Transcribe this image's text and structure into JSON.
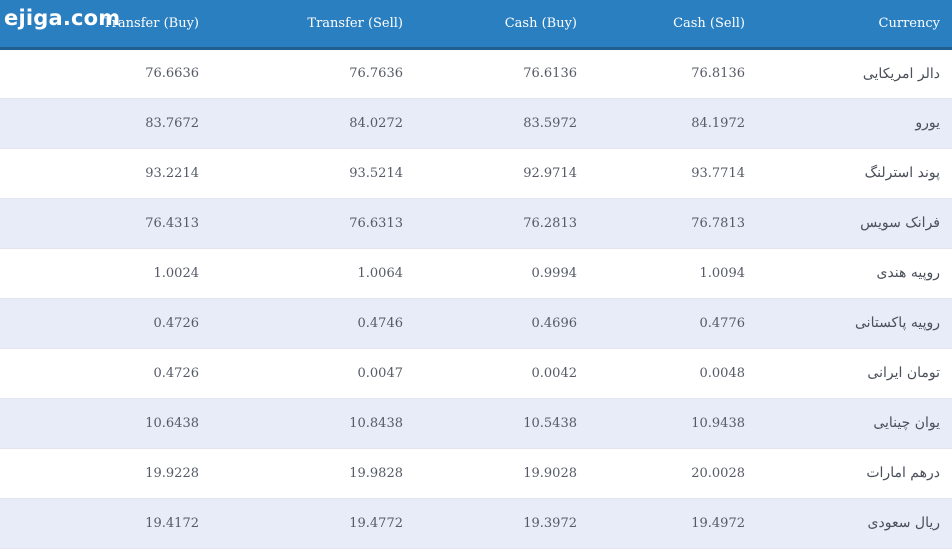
{
  "brand": {
    "logo_text": "ejiga.com"
  },
  "table": {
    "headers": [
      "Transfer (Buy)",
      "Transfer (Sell)",
      "Cash (Buy)",
      "Cash (Sell)",
      "Currency"
    ],
    "rows": [
      {
        "transfer_buy": "76.6636",
        "transfer_sell": "76.7636",
        "cash_buy": "76.6136",
        "cash_sell": "76.8136",
        "currency": "دالر امریکایی"
      },
      {
        "transfer_buy": "83.7672",
        "transfer_sell": "84.0272",
        "cash_buy": "83.5972",
        "cash_sell": "84.1972",
        "currency": "یورو"
      },
      {
        "transfer_buy": "93.2214",
        "transfer_sell": "93.5214",
        "cash_buy": "92.9714",
        "cash_sell": "93.7714",
        "currency": "پوند استرلنگ"
      },
      {
        "transfer_buy": "76.4313",
        "transfer_sell": "76.6313",
        "cash_buy": "76.2813",
        "cash_sell": "76.7813",
        "currency": "فرانک سویس"
      },
      {
        "transfer_buy": "1.0024",
        "transfer_sell": "1.0064",
        "cash_buy": "0.9994",
        "cash_sell": "1.0094",
        "currency": "روپیه هندی"
      },
      {
        "transfer_buy": "0.4726",
        "transfer_sell": "0.4746",
        "cash_buy": "0.4696",
        "cash_sell": "0.4776",
        "currency": "روپیه پاکستانی"
      },
      {
        "transfer_buy": "0.4726",
        "transfer_sell": "0.0047",
        "cash_buy": "0.0042",
        "cash_sell": "0.0048",
        "currency": "تومان ایرانی"
      },
      {
        "transfer_buy": "10.6438",
        "transfer_sell": "10.8438",
        "cash_buy": "10.5438",
        "cash_sell": "10.9438",
        "currency": "یوان چینایی"
      },
      {
        "transfer_buy": "19.9228",
        "transfer_sell": "19.9828",
        "cash_buy": "19.9028",
        "cash_sell": "20.0028",
        "currency": "درهم امارات"
      },
      {
        "transfer_buy": "19.4172",
        "transfer_sell": "19.4772",
        "cash_buy": "19.3972",
        "cash_sell": "19.4972",
        "currency": "ریال سعودی"
      }
    ]
  },
  "colors": {
    "header_bg": "#2a7fc1",
    "header_border": "#1f5f92",
    "row_alt_bg": "#e8ebf8",
    "text": "#555a66"
  }
}
